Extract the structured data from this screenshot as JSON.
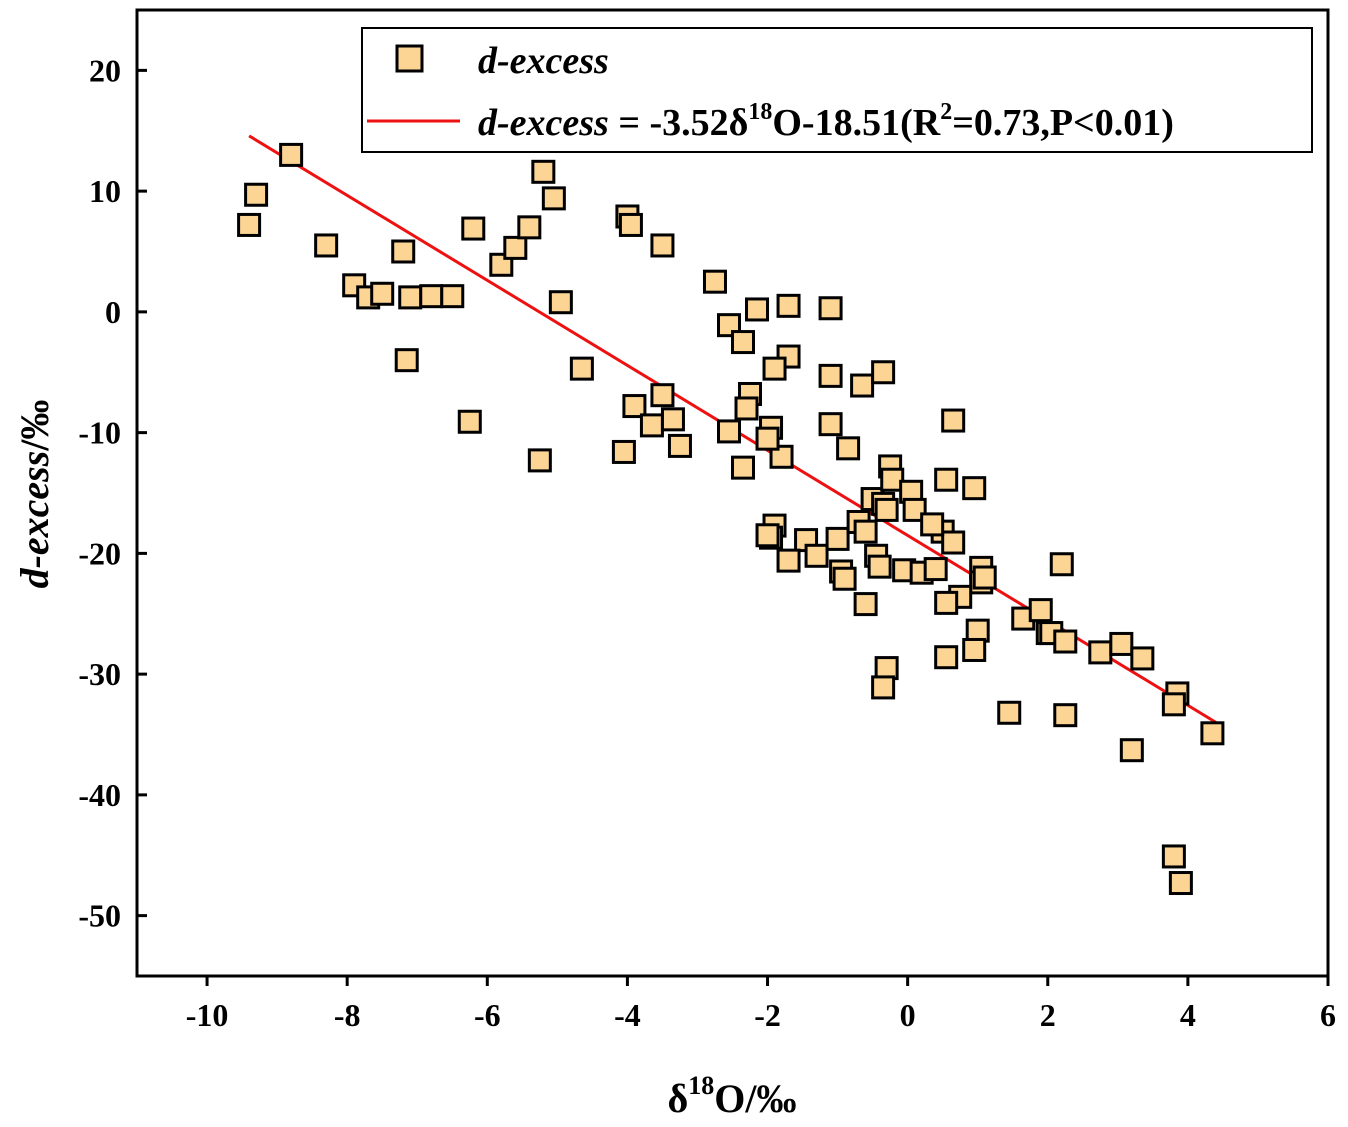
{
  "chart_data": {
    "type": "scatter",
    "xlabel_main": "δ",
    "xlabel_sup": "18",
    "xlabel_tail": "O/‰",
    "ylabel_italic": "d-excess",
    "ylabel_tail": "/‰",
    "xlim": [
      -11,
      6
    ],
    "ylim": [
      -55,
      25
    ],
    "x_ticks": [
      "-10",
      "-8",
      "-6",
      "-4",
      "-2",
      "0",
      "2",
      "4",
      "6"
    ],
    "y_ticks": [
      "20",
      "10",
      "0",
      "-10",
      "-20",
      "-30",
      "-40",
      "-50"
    ],
    "legend": {
      "series_label": "d-excess",
      "fit_label_italic": "d-excess",
      "fit_label_a": " = -3.52δ",
      "fit_label_sup1": "18",
      "fit_label_b": "O-18.51(R",
      "fit_label_sup2": "2",
      "fit_label_c": "=0.73,P<0.01)"
    },
    "colors": {
      "marker_fill": "#fcd595",
      "marker_edge": "#000000",
      "fit_line": "#ee1111"
    },
    "fit": {
      "slope": -3.52,
      "intercept": -18.51,
      "x_range": [
        -9.4,
        4.4
      ]
    },
    "series": [
      {
        "name": "d-excess",
        "x": [
          -8.8,
          -9.3,
          -9.4,
          -8.3,
          -7.9,
          -7.7,
          -7.5,
          -7.1,
          -7.2,
          -6.8,
          -6.5,
          -7.15,
          -6.2,
          -6.25,
          -5.8,
          -5.6,
          -5.4,
          -5.2,
          -5.05,
          -4.95,
          -5.25,
          -4.65,
          -4.0,
          -3.95,
          -3.5,
          -3.9,
          -3.65,
          -3.5,
          -3.35,
          -3.25,
          -4.05,
          -2.75,
          -2.55,
          -2.35,
          -2.15,
          -2.25,
          -2.3,
          -2.55,
          -2.35,
          -1.7,
          -1.7,
          -1.9,
          -1.95,
          -1.8,
          -2.0,
          -1.9,
          -1.95,
          -2.0,
          -1.45,
          -1.3,
          -1.7,
          -1.1,
          -1.1,
          -1.1,
          -0.65,
          -0.35,
          -0.85,
          -0.95,
          -1.0,
          -0.9,
          -0.7,
          -0.6,
          -0.6,
          -0.5,
          -0.45,
          -0.4,
          -0.35,
          -0.25,
          -0.22,
          -0.3,
          -0.05,
          0.05,
          0.1,
          0.2,
          0.4,
          0.5,
          0.55,
          0.65,
          0.65,
          0.35,
          0.55,
          0.95,
          1.0,
          1.05,
          1.05,
          0.75,
          1.1,
          0.95,
          0.55,
          -0.3,
          -0.35,
          1.45,
          1.65,
          1.9,
          2.0,
          2.05,
          2.25,
          2.25,
          2.2,
          2.75,
          3.05,
          3.35,
          3.2,
          3.85,
          3.8,
          4.35,
          3.8,
          3.9
        ],
        "y": [
          13.0,
          9.7,
          7.2,
          5.5,
          2.2,
          1.2,
          1.5,
          1.2,
          5.0,
          1.3,
          1.3,
          -4.0,
          6.9,
          -9.1,
          3.9,
          5.3,
          7.0,
          11.6,
          9.4,
          0.8,
          -12.3,
          -4.7,
          7.9,
          7.2,
          5.5,
          -7.8,
          -9.4,
          -6.9,
          -8.9,
          -11.1,
          -11.6,
          2.5,
          -1.1,
          -2.5,
          0.2,
          -6.8,
          -8.0,
          -9.9,
          -12.9,
          0.5,
          -3.7,
          -4.7,
          -9.6,
          -12.0,
          -10.5,
          -17.7,
          -18.7,
          -18.5,
          -18.9,
          -20.2,
          -20.6,
          0.3,
          -5.3,
          -9.3,
          -6.1,
          -5.0,
          -11.3,
          -21.5,
          -18.8,
          -22.1,
          -17.4,
          -18.2,
          -24.2,
          -15.5,
          -20.2,
          -21.1,
          -15.9,
          -12.8,
          -13.9,
          -16.4,
          -21.4,
          -14.9,
          -16.4,
          -21.6,
          -21.3,
          -18.2,
          -28.6,
          -19.1,
          -9.0,
          -17.6,
          -13.9,
          -14.6,
          -26.4,
          -21.2,
          -22.4,
          -23.6,
          -22.0,
          -28.0,
          -24.1,
          -29.5,
          -31.1,
          -33.2,
          -25.4,
          -24.7,
          -26.6,
          -26.6,
          -27.3,
          -33.4,
          -20.9,
          -28.2,
          -27.5,
          -28.7,
          -36.3,
          -31.6,
          -32.5,
          -34.9,
          -45.1,
          -47.3
        ]
      }
    ]
  }
}
